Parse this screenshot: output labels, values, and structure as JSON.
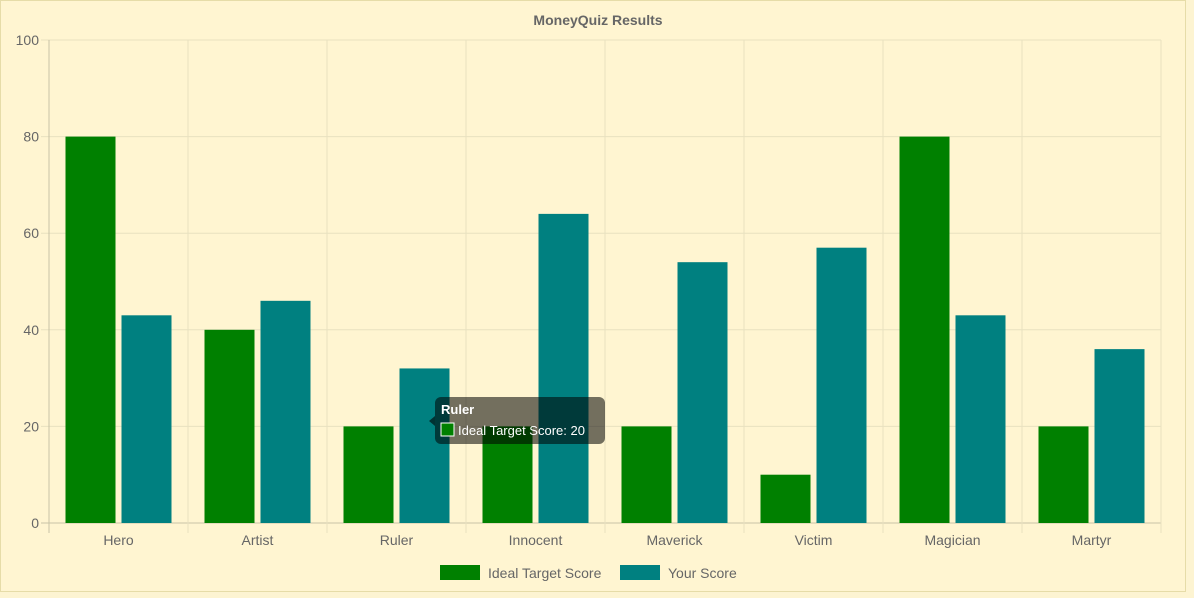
{
  "chart_data": {
    "type": "bar",
    "title": "MoneyQuiz Results",
    "categories": [
      "Hero",
      "Artist",
      "Ruler",
      "Innocent",
      "Maverick",
      "Victim",
      "Magician",
      "Martyr"
    ],
    "series": [
      {
        "name": "Ideal Target Score",
        "color": "#008000",
        "values": [
          80,
          40,
          20,
          20,
          20,
          10,
          80,
          20
        ]
      },
      {
        "name": "Your Score",
        "color": "#008080",
        "values": [
          43,
          46,
          32,
          64,
          54,
          57,
          43,
          36
        ]
      }
    ],
    "ylim": [
      0,
      100
    ],
    "yticks": [
      "0",
      "20",
      "40",
      "60",
      "80",
      "100"
    ],
    "grid": true,
    "legend_position": "bottom",
    "tooltip": {
      "title": "Ruler",
      "body": "Ideal Target Score: 20",
      "category_index": 2,
      "series_index": 0
    }
  }
}
